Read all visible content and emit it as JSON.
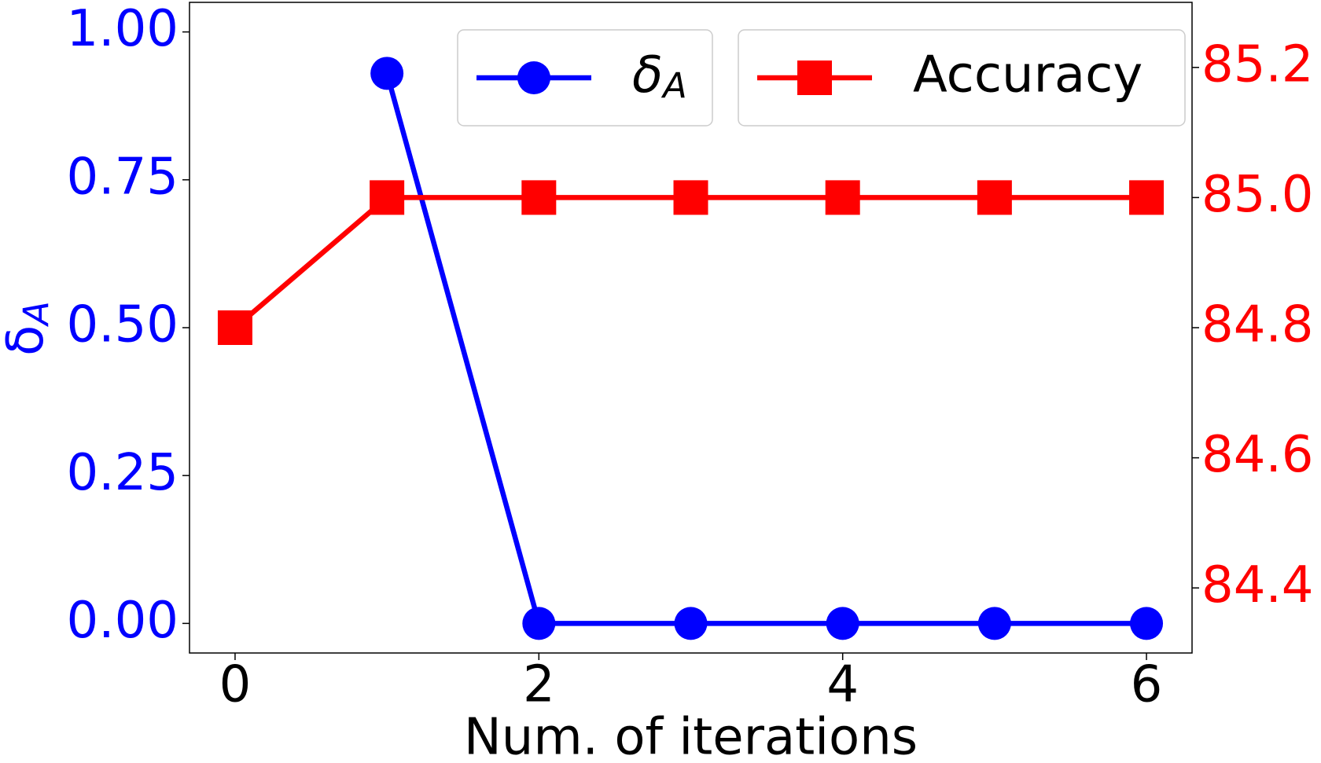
{
  "chart_data": {
    "type": "line",
    "xlabel": "Num. of iterations",
    "ylabel": "δA",
    "x": [
      0,
      1,
      2,
      3,
      4,
      5,
      6
    ],
    "xlim": [
      -0.3,
      6.3
    ],
    "xticks": [
      0,
      2,
      4,
      6
    ],
    "ylim": [
      -0.05,
      1.05
    ],
    "yticks": [
      {
        "value": 0,
        "label": "0.00"
      },
      0.25,
      {
        "value": 0.5,
        "label": "0.50"
      },
      0.75,
      {
        "value": 1,
        "label": "1.00"
      }
    ],
    "y2lim": [
      84.3,
      85.3
    ],
    "y2ticks": [
      84.4,
      84.6,
      84.8,
      {
        "value": 85,
        "label": "85.0"
      },
      85.2
    ],
    "left_color": "#0000ff",
    "right_color": "#ff0000",
    "series": [
      {
        "name": "δA",
        "color": "#0000ff",
        "marker": "circle",
        "values": [
          null,
          0.93,
          0,
          0,
          0,
          0,
          0
        ]
      },
      {
        "name": "Accuracy",
        "color": "#ff0000",
        "marker": "square",
        "axis": "y2",
        "values": [
          84.8,
          85.0,
          85.0,
          85.0,
          85.0,
          85.0,
          85.0
        ]
      }
    ]
  }
}
